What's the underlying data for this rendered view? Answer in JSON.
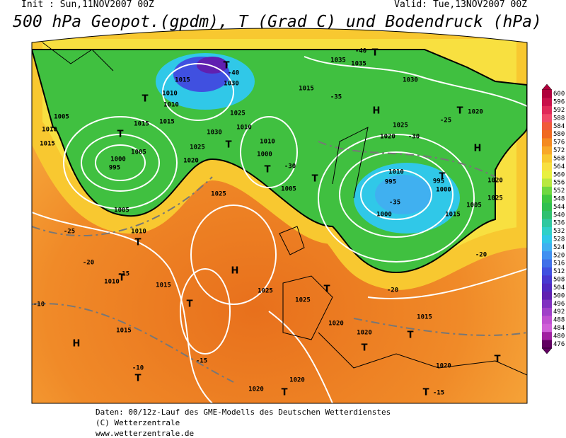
{
  "header": {
    "init": "Init : Sun,11NOV2007 00Z",
    "valid": "Valid: Tue,13NOV2007 00Z",
    "title": "500 hPa Geopot.(gpdm), T (Grad C) und Bodendruck (hPa)"
  },
  "legend": {
    "values": [
      600,
      596,
      592,
      588,
      584,
      580,
      576,
      572,
      568,
      564,
      560,
      556,
      552,
      548,
      544,
      540,
      536,
      532,
      528,
      524,
      520,
      516,
      512,
      508,
      504,
      500,
      496,
      492,
      488,
      484,
      480,
      476
    ],
    "colors": [
      "#b0003c",
      "#c8104a",
      "#e02a5a",
      "#f04a6a",
      "#f05a3a",
      "#f06a20",
      "#f48a20",
      "#f8a828",
      "#f8c830",
      "#f8e040",
      "#e8f040",
      "#b8e840",
      "#70d840",
      "#40c840",
      "#30c050",
      "#30c070",
      "#30c8a0",
      "#30d0c8",
      "#30c8e8",
      "#40b0f0",
      "#4090f0",
      "#4070e8",
      "#4050e0",
      "#4838d0",
      "#5028c0",
      "#6020b0",
      "#8030c0",
      "#a040c8",
      "#c050d0",
      "#d060d8",
      "#a020a0",
      "#600060"
    ]
  },
  "map_labels": [
    "1005",
    "1010",
    "1015",
    "T",
    "T",
    "1010",
    "1015",
    "1010",
    "1015",
    "1015",
    "1005",
    "1000",
    "995",
    "1005",
    "T",
    "1030",
    "1025",
    "1030",
    "1025",
    "1020",
    "T",
    "1010",
    "1010",
    "1000",
    "T",
    "1005",
    "T",
    "1035",
    "1035",
    "T",
    "1030",
    "1015",
    "H",
    "1020",
    "1025",
    "T",
    "1020",
    "H",
    "1010",
    "995",
    "T",
    "995",
    "1000",
    "1000",
    "1005",
    "1020",
    "1015",
    "1025",
    "1025",
    "H",
    "1010",
    "T",
    "1010",
    "T",
    "1015",
    "T",
    "1015",
    "1020",
    "1025",
    "1025",
    "T",
    "1020",
    "1020",
    "T",
    "T",
    "1015",
    "1020",
    "T",
    "H",
    "T",
    "T",
    "1020",
    "T",
    "-25",
    "-20",
    "-15",
    "-10",
    "-15",
    "-35",
    "-30",
    "-25",
    "-35",
    "-30",
    "-20",
    "-15",
    "-20",
    "-40",
    "-40",
    "-10"
  ],
  "footer": [
    "Daten: 00/12z-Lauf des GME-Modells des Deutschen Wetterdienstes",
    "(C) Wetterzentrale",
    "www.wetterzentrale.de"
  ]
}
